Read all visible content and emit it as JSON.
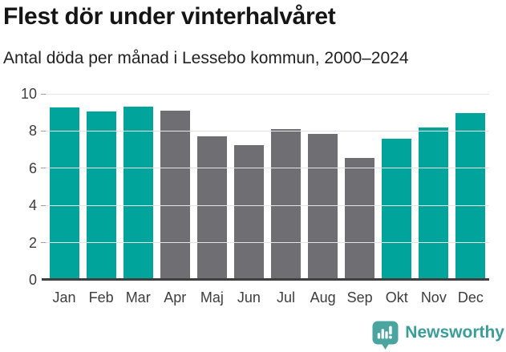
{
  "header": {
    "title": "Flest dör under vinterhalvåret",
    "subtitle": "Antal döda per månad i Lessebo kommun, 2000–2024"
  },
  "chart_data": {
    "type": "bar",
    "title": "Flest dör under vinterhalvåret",
    "subtitle": "Antal döda per månad i Lessebo kommun, 2000–2024",
    "categories": [
      "Jan",
      "Feb",
      "Mar",
      "Apr",
      "Maj",
      "Jun",
      "Jul",
      "Aug",
      "Sep",
      "Okt",
      "Nov",
      "Dec"
    ],
    "values": [
      9.25,
      9.05,
      9.3,
      9.1,
      7.7,
      7.25,
      8.1,
      7.85,
      6.55,
      7.6,
      8.2,
      8.95
    ],
    "xlabel": "",
    "ylabel": "",
    "ylim": [
      0,
      10
    ],
    "yticks": [
      0,
      2,
      4,
      6,
      8,
      10
    ],
    "grid": true,
    "legend_position": "none",
    "highlighted_categories": [
      "Jan",
      "Feb",
      "Mar",
      "Okt",
      "Nov",
      "Dec"
    ],
    "colors": {
      "highlight": "#00a49b",
      "default": "#6e6e73",
      "gridline": "#e4e4e4",
      "axis": "#3f3f3f",
      "label": "#3d3d3d"
    }
  },
  "footer": {
    "brand": "Newsworthy",
    "logo_icon": "newsworthy-speech-bubble-barchart-icon",
    "brand_color": "#3b9c98",
    "logo_color": "#4aa5a1"
  }
}
